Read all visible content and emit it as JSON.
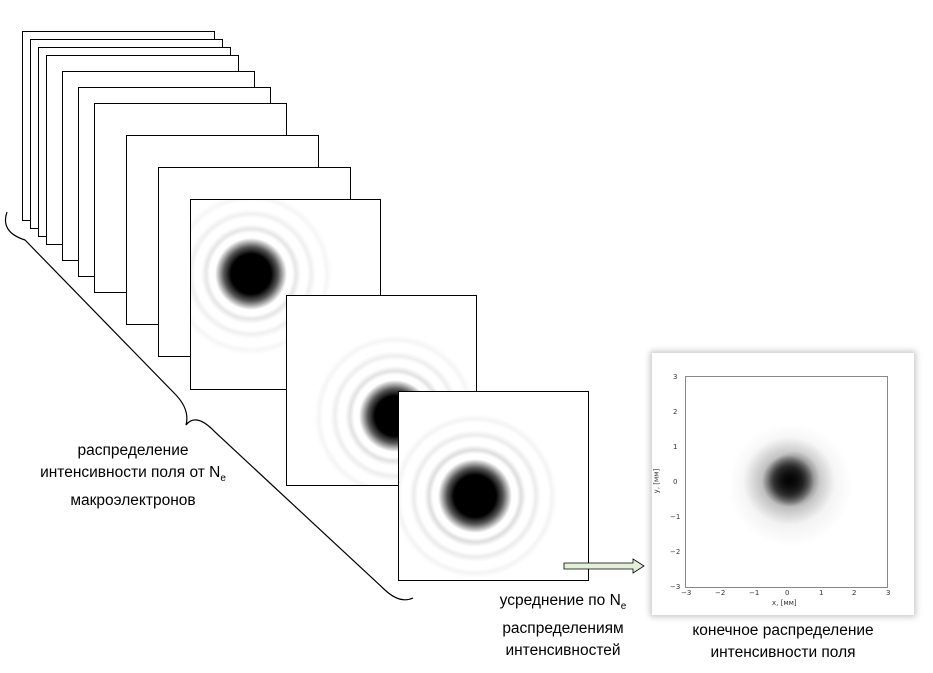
{
  "left_label": {
    "line1": "распределение",
    "line2": "интенсивности поля от N",
    "line2_sub": "e",
    "line3": "макроэлектронов"
  },
  "middle_label": {
    "line1": "усреднение по N",
    "line1_sub": "e",
    "line2": "распределениям",
    "line3": "интенсивностей"
  },
  "right_label": {
    "line1": "конечное распределение",
    "line2": "интенсивности поля"
  },
  "result_plot": {
    "xlabel": "x, [мм]",
    "ylabel": "y, [мм]",
    "x_ticks": [
      "−3",
      "−2",
      "−1",
      "0",
      "1",
      "2",
      "3"
    ],
    "y_ticks": [
      "3",
      "2",
      "1",
      "0",
      "−1",
      "−2",
      "−3"
    ],
    "xlim": [
      -3,
      3
    ],
    "ylim": [
      -3,
      3
    ]
  },
  "colors": {
    "frame_border": "#000000",
    "arrow_fill": "#e2efd9",
    "spot": "#000000"
  }
}
